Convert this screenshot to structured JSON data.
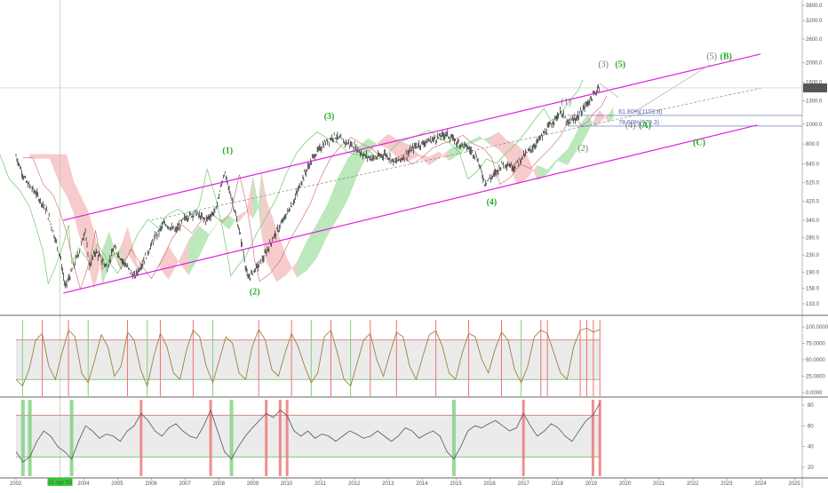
{
  "chart_data": [
    {
      "type": "line",
      "panel": "price",
      "scale": "log",
      "y_ticks": [
        133,
        158,
        190,
        230,
        280,
        340,
        420,
        520,
        640,
        800,
        1000,
        1300,
        1600,
        2000,
        2600,
        3200,
        3800
      ],
      "y_tick_labels": [
        "133.0",
        "158.0",
        "190.0",
        "230.0",
        "280.0",
        "340.0",
        "420.0",
        "520.0",
        "640.0",
        "800.0",
        "1000.0",
        "1300.0",
        "1600.0",
        "2000.0",
        "2600.0",
        "3200.0",
        "3800.0"
      ],
      "x_range": [
        2002,
        2025.7
      ],
      "last_price": 1503.2,
      "last_price_label": "1503.2",
      "price_path": [
        [
          2002.0,
          700
        ],
        [
          2002.3,
          520
        ],
        [
          2002.6,
          460
        ],
        [
          2002.9,
          380
        ],
        [
          2003.1,
          300
        ],
        [
          2003.3,
          230
        ],
        [
          2003.45,
          160
        ],
        [
          2003.7,
          200
        ],
        [
          2003.9,
          250
        ],
        [
          2004.05,
          310
        ],
        [
          2004.15,
          200
        ],
        [
          2004.35,
          240
        ],
        [
          2004.7,
          200
        ],
        [
          2004.9,
          250
        ],
        [
          2005.2,
          210
        ],
        [
          2005.5,
          180
        ],
        [
          2005.8,
          220
        ],
        [
          2006.1,
          280
        ],
        [
          2006.4,
          330
        ],
        [
          2006.7,
          300
        ],
        [
          2007.0,
          350
        ],
        [
          2007.3,
          370
        ],
        [
          2007.6,
          340
        ],
        [
          2007.9,
          380
        ],
        [
          2008.15,
          580
        ],
        [
          2008.4,
          420
        ],
        [
          2008.6,
          300
        ],
        [
          2008.75,
          220
        ],
        [
          2008.85,
          175
        ],
        [
          2009.0,
          190
        ],
        [
          2009.3,
          220
        ],
        [
          2009.6,
          280
        ],
        [
          2009.9,
          340
        ],
        [
          2010.2,
          420
        ],
        [
          2010.5,
          560
        ],
        [
          2010.8,
          700
        ],
        [
          2011.1,
          800
        ],
        [
          2011.4,
          880
        ],
        [
          2011.7,
          820
        ],
        [
          2012.0,
          780
        ],
        [
          2012.3,
          700
        ],
        [
          2012.6,
          680
        ],
        [
          2012.9,
          720
        ],
        [
          2013.2,
          650
        ],
        [
          2013.5,
          700
        ],
        [
          2013.8,
          780
        ],
        [
          2014.1,
          820
        ],
        [
          2014.4,
          850
        ],
        [
          2014.7,
          900
        ],
        [
          2015.0,
          820
        ],
        [
          2015.3,
          780
        ],
        [
          2015.6,
          700
        ],
        [
          2015.85,
          520
        ],
        [
          2016.1,
          560
        ],
        [
          2016.4,
          650
        ],
        [
          2016.7,
          620
        ],
        [
          2017.0,
          700
        ],
        [
          2017.3,
          780
        ],
        [
          2017.6,
          900
        ],
        [
          2017.9,
          1050
        ],
        [
          2018.1,
          1150
        ],
        [
          2018.3,
          1000
        ],
        [
          2018.5,
          1050
        ],
        [
          2018.7,
          1150
        ],
        [
          2018.85,
          1250
        ],
        [
          2019.1,
          1400
        ],
        [
          2019.25,
          1580
        ]
      ],
      "channel_upper": [
        [
          2003.4,
          340
        ],
        [
          2024.0,
          2200
        ]
      ],
      "channel_lower": [
        [
          2003.4,
          150
        ],
        [
          2023.9,
          990
        ]
      ],
      "channel_mid": [
        [
          2006.0,
          340
        ],
        [
          2024.0,
          1500
        ]
      ],
      "fib_levels": [
        {
          "label": "61.80%(1103.8)",
          "value": 1103.8
        },
        {
          "label": "78.60%(979.3)",
          "value": 979.3
        }
      ],
      "wave_labels_green": [
        {
          "text": "(1)",
          "x": 2008.1,
          "y": 720
        },
        {
          "text": "(2)",
          "x": 2008.9,
          "y": 148
        },
        {
          "text": "(3)",
          "x": 2011.1,
          "y": 1060
        },
        {
          "text": "(4)",
          "x": 2015.9,
          "y": 405
        },
        {
          "text": "(5)",
          "x": 2019.7,
          "y": 1900
        },
        {
          "text": "(A)",
          "x": 2020.4,
          "y": 960
        },
        {
          "text": "(B)",
          "x": 2022.8,
          "y": 2080
        },
        {
          "text": "(C)",
          "x": 2022.0,
          "y": 790
        }
      ],
      "wave_labels_gray": [
        {
          "text": "(3)",
          "x": 2019.2,
          "y": 1900
        },
        {
          "text": "(1)",
          "x": 2018.1,
          "y": 1250
        },
        {
          "text": "(2)",
          "x": 2018.6,
          "y": 740
        },
        {
          "text": "(4)",
          "x": 2020.0,
          "y": 960
        },
        {
          "text": "(5)",
          "x": 2022.4,
          "y": 2080
        }
      ]
    },
    {
      "type": "line",
      "panel": "oscillator",
      "y_ticks": [
        0,
        25,
        50,
        75,
        100
      ],
      "y_tick_labels": [
        "0.0000",
        "25.0000",
        "50.0000",
        "75.0000",
        "100.0000"
      ],
      "overbought": 80,
      "oversold": 20,
      "values": [
        20,
        10,
        35,
        80,
        90,
        40,
        20,
        60,
        95,
        85,
        30,
        15,
        50,
        88,
        70,
        25,
        40,
        92,
        80,
        35,
        10,
        55,
        90,
        70,
        30,
        20,
        65,
        95,
        85,
        40,
        15,
        50,
        85,
        75,
        30,
        20,
        70,
        96,
        80,
        35,
        25,
        60,
        90,
        70,
        40,
        15,
        30,
        85,
        95,
        60,
        20,
        10,
        45,
        80,
        90,
        50,
        25,
        60,
        92,
        85,
        40,
        20,
        55,
        88,
        94,
        70,
        30,
        20,
        60,
        90,
        85,
        50,
        30,
        65,
        92,
        80,
        35,
        15,
        40,
        85,
        95,
        90,
        60,
        30,
        20,
        70,
        95,
        98,
        92,
        96
      ]
    },
    {
      "type": "line",
      "panel": "rsi",
      "y_ticks": [
        20,
        40,
        60,
        80
      ],
      "y_tick_labels": [
        "20",
        "40",
        "60",
        "80"
      ],
      "overbought": 70,
      "oversold": 30,
      "values": [
        35,
        25,
        30,
        45,
        55,
        50,
        40,
        35,
        28,
        45,
        60,
        55,
        48,
        52,
        50,
        45,
        55,
        60,
        72,
        65,
        55,
        50,
        58,
        62,
        55,
        50,
        48,
        60,
        75,
        55,
        35,
        28,
        40,
        50,
        58,
        65,
        72,
        68,
        75,
        70,
        55,
        50,
        55,
        48,
        52,
        50,
        45,
        50,
        55,
        52,
        48,
        50,
        55,
        50,
        45,
        50,
        58,
        55,
        48,
        52,
        55,
        50,
        35,
        28,
        40,
        55,
        60,
        58,
        62,
        65,
        60,
        55,
        58,
        72,
        60,
        50,
        55,
        62,
        58,
        50,
        45,
        55,
        65,
        70,
        82
      ]
    }
  ],
  "x_axis": {
    "years": [
      "2002",
      "2004",
      "2005",
      "2006",
      "2007",
      "2008",
      "2009",
      "2010",
      "2011",
      "2012",
      "2013",
      "2014",
      "2015",
      "2016",
      "2017",
      "2018",
      "2019",
      "2020",
      "2021",
      "2022",
      "2023",
      "2024",
      "2025"
    ],
    "year_values": [
      2002,
      2004,
      2005,
      2006,
      2007,
      2008,
      2009,
      2010,
      2011,
      2012,
      2013,
      2014,
      2015,
      2016,
      2017,
      2018,
      2019,
      2020,
      2021,
      2022,
      2023,
      2024,
      2025
    ],
    "cursor_label": "21 Apr '03"
  },
  "colors": {
    "channel": "#e020e0",
    "wave_green": "#22aa22",
    "wave_gray": "#777777",
    "cloud_bull": "#90d890",
    "cloud_bear": "#f0a8a8",
    "osc_line": "#a08040",
    "rsi_line": "#555555",
    "band_fill": "#dddddd",
    "bull_bar": "#7ed07e",
    "bear_bar": "#f07070"
  }
}
